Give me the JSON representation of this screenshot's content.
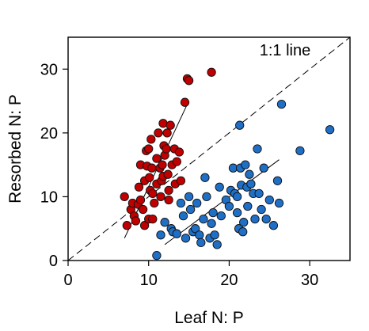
{
  "chart_data": {
    "type": "scatter",
    "xlabel": "Leaf N: P",
    "ylabel": "Resorbed N: P",
    "xlim": [
      0,
      35
    ],
    "ylim": [
      0,
      35
    ],
    "xticks": [
      0,
      10,
      20,
      30
    ],
    "yticks": [
      0,
      10,
      20,
      30
    ],
    "grid": false,
    "annotations": [
      {
        "text": "1:1 line"
      }
    ],
    "reference_lines": [
      {
        "from": [
          0,
          0
        ],
        "to": [
          35,
          35
        ],
        "style": "dashed"
      }
    ],
    "series": [
      {
        "color": "#c00000",
        "points": [
          [
            7.0,
            10.0
          ],
          [
            7.3,
            5.5
          ],
          [
            7.8,
            8.0
          ],
          [
            8.0,
            9.0
          ],
          [
            8.2,
            7.0
          ],
          [
            8.4,
            6.2
          ],
          [
            8.7,
            8.8
          ],
          [
            8.8,
            11.5
          ],
          [
            9.0,
            15.0
          ],
          [
            9.0,
            9.5
          ],
          [
            9.3,
            8.0
          ],
          [
            9.5,
            12.5
          ],
          [
            9.5,
            5.5
          ],
          [
            9.7,
            17.2
          ],
          [
            9.8,
            14.8
          ],
          [
            10.0,
            6.5
          ],
          [
            10.0,
            17.5
          ],
          [
            10.1,
            13.0
          ],
          [
            10.2,
            11.0
          ],
          [
            10.3,
            19.0
          ],
          [
            10.4,
            14.5
          ],
          [
            10.5,
            10.5
          ],
          [
            10.5,
            6.5
          ],
          [
            10.7,
            9.0
          ],
          [
            11.0,
            16.0
          ],
          [
            11.0,
            12.0
          ],
          [
            11.2,
            20.0
          ],
          [
            11.4,
            14.5
          ],
          [
            11.5,
            10.0
          ],
          [
            11.6,
            12.5
          ],
          [
            11.7,
            15.0
          ],
          [
            11.8,
            21.5
          ],
          [
            11.8,
            13.2
          ],
          [
            11.9,
            18.0
          ],
          [
            12.0,
            16.5
          ],
          [
            12.2,
            17.5
          ],
          [
            12.3,
            20.0
          ],
          [
            12.4,
            13.5
          ],
          [
            12.5,
            11.0
          ],
          [
            12.5,
            9.5
          ],
          [
            12.7,
            21.2
          ],
          [
            12.9,
            15.0
          ],
          [
            13.2,
            17.5
          ],
          [
            13.3,
            12.0
          ],
          [
            13.5,
            15.5
          ],
          [
            13.8,
            17.0
          ],
          [
            14.0,
            12.5
          ],
          [
            14.5,
            24.8
          ],
          [
            14.8,
            28.5
          ],
          [
            15.0,
            28.2
          ],
          [
            17.8,
            29.5
          ]
        ]
      },
      {
        "color": "#1f6fc6",
        "points": [
          [
            11.0,
            0.8
          ],
          [
            11.5,
            4.0
          ],
          [
            12.0,
            6.0
          ],
          [
            12.8,
            5.0
          ],
          [
            13.0,
            4.5
          ],
          [
            13.5,
            4.2
          ],
          [
            14.0,
            9.0
          ],
          [
            14.3,
            7.0
          ],
          [
            14.6,
            3.5
          ],
          [
            15.0,
            10.0
          ],
          [
            15.2,
            8.0
          ],
          [
            15.5,
            4.5
          ],
          [
            15.8,
            5.0
          ],
          [
            16.0,
            9.0
          ],
          [
            16.3,
            4.0
          ],
          [
            16.5,
            2.8
          ],
          [
            16.8,
            6.5
          ],
          [
            17.0,
            13.0
          ],
          [
            17.2,
            10.0
          ],
          [
            17.6,
            3.5
          ],
          [
            17.8,
            5.8
          ],
          [
            18.0,
            7.5
          ],
          [
            18.2,
            4.0
          ],
          [
            18.5,
            2.5
          ],
          [
            18.8,
            11.5
          ],
          [
            19.0,
            7.0
          ],
          [
            19.6,
            9.5
          ],
          [
            20.0,
            8.5
          ],
          [
            20.2,
            11.0
          ],
          [
            20.5,
            14.5
          ],
          [
            20.7,
            10.5
          ],
          [
            21.0,
            10.0
          ],
          [
            21.0,
            7.5
          ],
          [
            21.2,
            5.0
          ],
          [
            21.3,
            21.2
          ],
          [
            21.4,
            14.5
          ],
          [
            21.5,
            11.8
          ],
          [
            21.7,
            4.5
          ],
          [
            21.8,
            6.0
          ],
          [
            22.0,
            15.0
          ],
          [
            22.2,
            11.5
          ],
          [
            22.3,
            8.5
          ],
          [
            22.5,
            13.5
          ],
          [
            22.7,
            12.0
          ],
          [
            23.0,
            10.5
          ],
          [
            23.2,
            6.5
          ],
          [
            23.5,
            17.5
          ],
          [
            23.7,
            10.5
          ],
          [
            24.0,
            8.0
          ],
          [
            24.3,
            14.5
          ],
          [
            24.6,
            6.5
          ],
          [
            25.0,
            9.5
          ],
          [
            25.5,
            5.5
          ],
          [
            26.0,
            12.5
          ],
          [
            26.5,
            24.5
          ],
          [
            26.2,
            9.0
          ],
          [
            28.8,
            17.2
          ],
          [
            32.5,
            20.5
          ]
        ]
      }
    ],
    "fit_lines": [
      {
        "color": "#000000",
        "from": [
          7.0,
          3.5
        ],
        "to": [
          14.8,
          24.5
        ]
      },
      {
        "color": "#000000",
        "from": [
          12.0,
          2.5
        ],
        "to": [
          26.2,
          15.8
        ]
      }
    ]
  }
}
